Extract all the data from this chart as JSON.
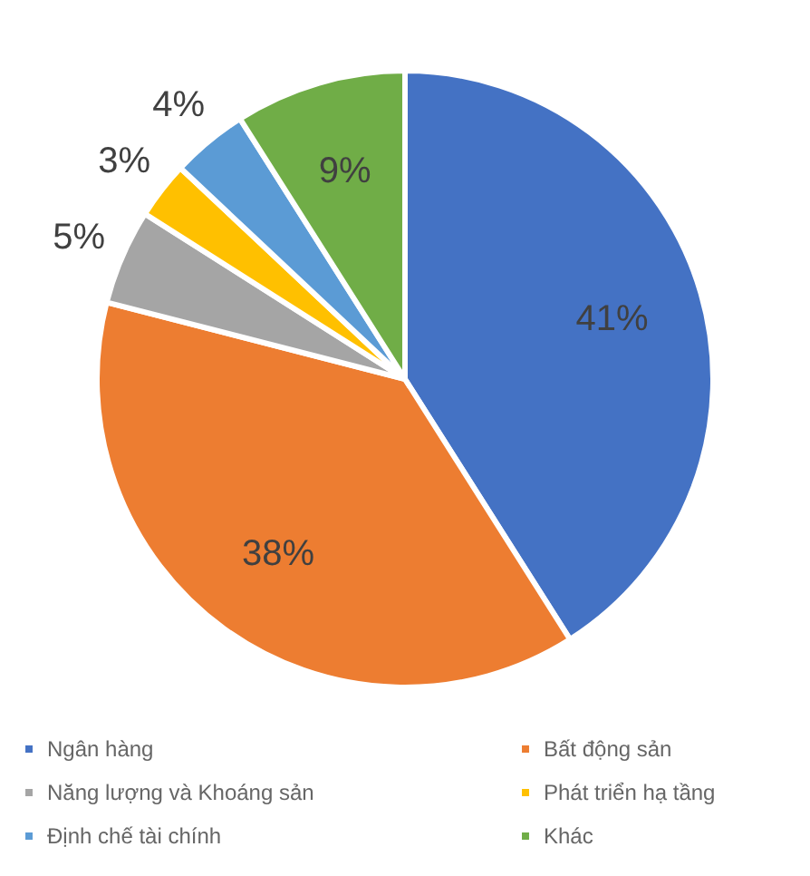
{
  "chart_data": {
    "type": "pie",
    "categories": [
      "Ngân hàng",
      "Bất động sản",
      "Năng lượng và Khoáng sản",
      "Phát triển hạ tầng",
      "Định chế tài chính",
      "Khác"
    ],
    "values": [
      41,
      38,
      5,
      3,
      4,
      9
    ],
    "colors": [
      "#4472c4",
      "#ed7d31",
      "#a5a5a5",
      "#ffc000",
      "#5b9bd5",
      "#70ad47"
    ],
    "value_labels": [
      "41%",
      "38%",
      "5%",
      "3%",
      "4%",
      "9%"
    ],
    "legend": "bottom"
  }
}
